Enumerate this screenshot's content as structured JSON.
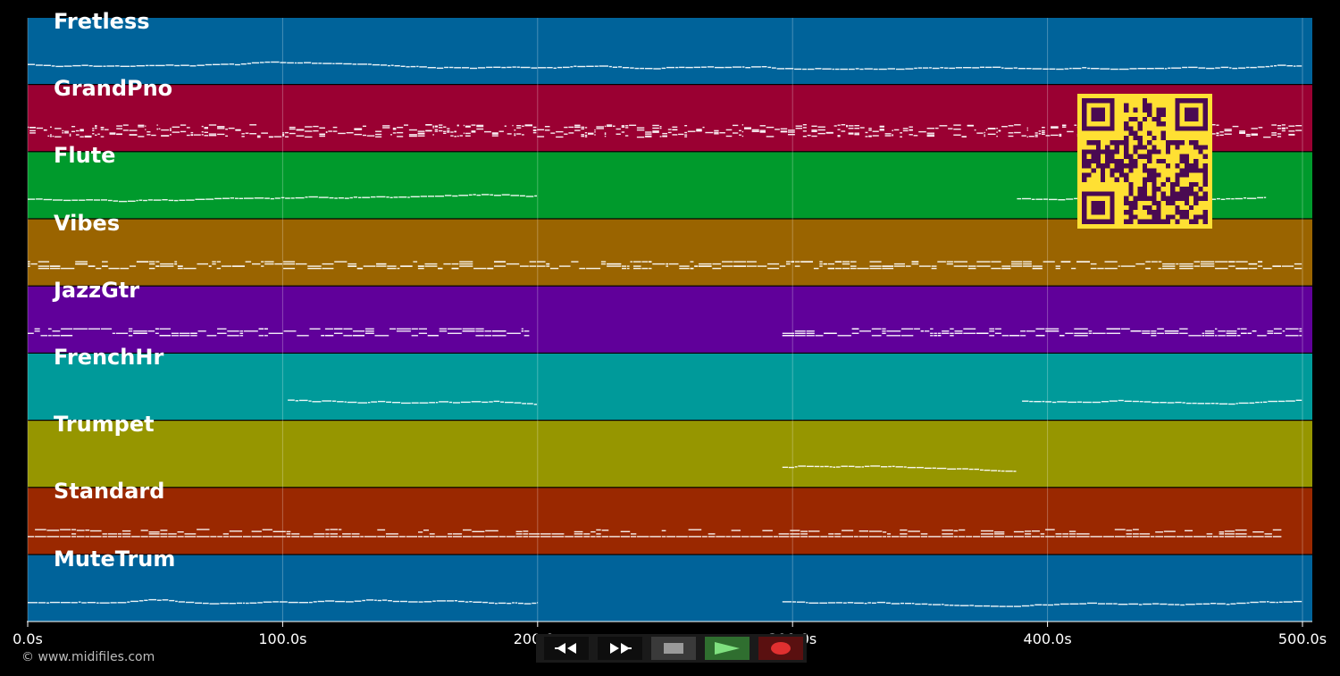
{
  "tracks": [
    {
      "name": "Fretless",
      "color": "#00639a",
      "pattern": "melody",
      "spans": [
        [
          0,
          500
        ]
      ]
    },
    {
      "name": "GrandPno",
      "color": "#9a0032",
      "pattern": "dense",
      "spans": [
        [
          0,
          500
        ]
      ]
    },
    {
      "name": "Flute",
      "color": "#009a2c",
      "pattern": "melody",
      "spans": [
        [
          0,
          200
        ],
        [
          388,
          486
        ]
      ]
    },
    {
      "name": "Vibes",
      "color": "#9a6400",
      "pattern": "block",
      "spans": [
        [
          0,
          500
        ]
      ]
    },
    {
      "name": "JazzGtr",
      "color": "#60009a",
      "pattern": "block",
      "spans": [
        [
          0,
          197
        ],
        [
          296,
          500
        ]
      ]
    },
    {
      "name": "FrenchHr",
      "color": "#009a9a",
      "pattern": "melody",
      "spans": [
        [
          102,
          200
        ],
        [
          390,
          500
        ]
      ]
    },
    {
      "name": "Trumpet",
      "color": "#969600",
      "pattern": "melody",
      "spans": [
        [
          296,
          388
        ]
      ]
    },
    {
      "name": "Standard",
      "color": "#9a2800",
      "pattern": "drums",
      "spans": [
        [
          0,
          492
        ]
      ]
    },
    {
      "name": "MuteTrum",
      "color": "#00639a",
      "pattern": "melody",
      "spans": [
        [
          0,
          200
        ],
        [
          296,
          500
        ]
      ]
    }
  ],
  "timeline": {
    "range": [
      0,
      500
    ],
    "ticks": [
      0,
      100,
      200,
      300,
      400,
      500
    ],
    "tick_labels": [
      "0.0s",
      "100.0s",
      "200.0s",
      "300.0s",
      "400.0s",
      "500.0s"
    ]
  },
  "overlay": {
    "copyright": "© www.midifiles.com",
    "qr_colors": {
      "background": "#ffe033",
      "modules": "#4a0a52"
    }
  },
  "transport": {
    "buttons": [
      {
        "id": "rewind",
        "icon": "rewind-icon"
      },
      {
        "id": "fast-forward",
        "icon": "fast-forward-icon"
      },
      {
        "id": "stop",
        "icon": "stop-icon"
      },
      {
        "id": "play",
        "icon": "play-icon"
      },
      {
        "id": "record",
        "icon": "record-icon"
      }
    ],
    "colors": {
      "play_bg": "#2f6e2f",
      "record_bg": "#5a1010",
      "stop_bg": "#3a3a3a",
      "default_bg": "#0e0e0e"
    }
  }
}
